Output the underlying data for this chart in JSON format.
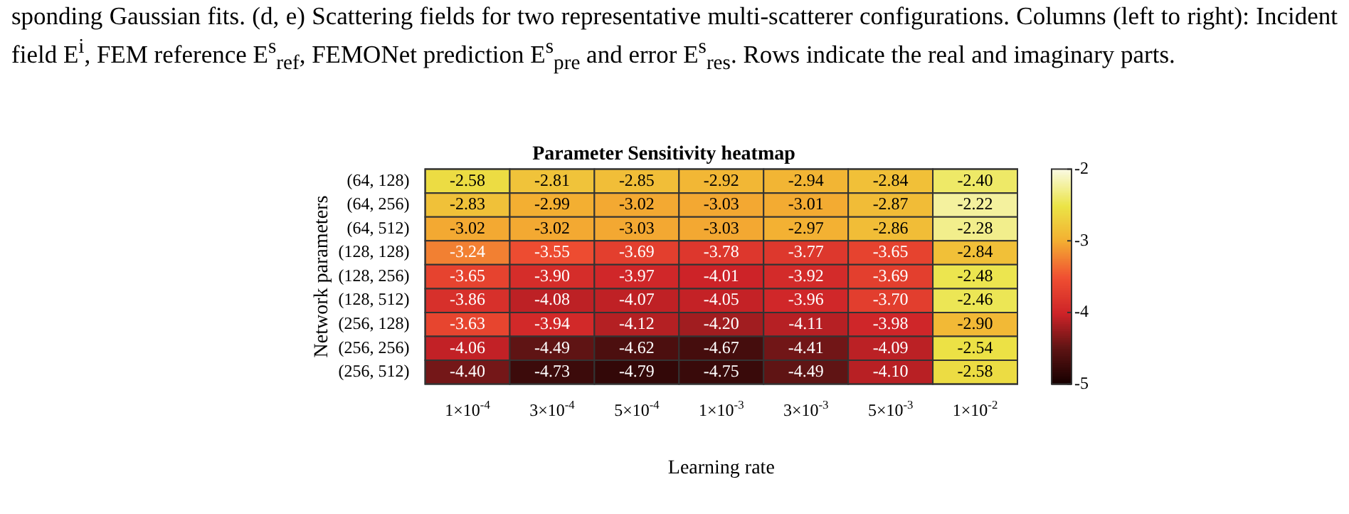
{
  "chart_data": {
    "type": "heatmap",
    "title": "Parameter Sensitivity heatmap",
    "xlabel": "Learning rate",
    "ylabel": "Network parameters",
    "annotations": [
      "sponding Gaussian fits. (d, e) Scattering fields for two representative multi-scatterer configurations. Columns (left to right): Incident field E$^{i}$, FEM reference E$^{s}$$_{ref}$, FEMONet prediction E$^{s}$$_{pre}$ and error E$^{s}$$_{res}$. Rows indicate the real and imaginary parts."
    ],
    "categories": [
      "1×10$^{-4}$",
      "3×10$^{-4}$",
      "5×10$^{-4}$",
      "1×10$^{-3}$",
      "3×10$^{-3}$",
      "5×10$^{-3}$",
      "1×10$^{-2}$"
    ],
    "y_categories": [
      "(64, 128)",
      "(64, 256)",
      "(64, 512)",
      "(128, 128)",
      "(128, 256)",
      "(128, 512)",
      "(256, 128)",
      "(256, 256)",
      "(256, 512)"
    ],
    "cells": [
      [
        -2.58,
        -2.81,
        -2.85,
        -2.92,
        -2.94,
        -2.84,
        -2.4
      ],
      [
        -2.83,
        -2.99,
        -3.02,
        -3.03,
        -3.01,
        -2.87,
        -2.22
      ],
      [
        -3.02,
        -3.02,
        -3.03,
        -3.03,
        -2.97,
        -2.86,
        -2.28
      ],
      [
        -3.24,
        -3.55,
        -3.69,
        -3.78,
        -3.77,
        -3.65,
        -2.84
      ],
      [
        -3.65,
        -3.9,
        -3.97,
        -4.01,
        -3.92,
        -3.69,
        -2.48
      ],
      [
        -3.86,
        -4.08,
        -4.07,
        -4.05,
        -3.96,
        -3.7,
        -2.46
      ],
      [
        -3.63,
        -3.94,
        -4.12,
        -4.2,
        -4.11,
        -3.98,
        -2.9
      ],
      [
        -4.06,
        -4.49,
        -4.62,
        -4.67,
        -4.41,
        -4.09,
        -2.54
      ],
      [
        -4.4,
        -4.73,
        -4.79,
        -4.75,
        -4.49,
        -4.1,
        -2.58
      ]
    ],
    "cell_labels": [
      [
        "-2.58",
        "-2.81",
        "-2.85",
        "-2.92",
        "-2.94",
        "-2.84",
        "-2.40"
      ],
      [
        "-2.83",
        "-2.99",
        "-3.02",
        "-3.03",
        "-3.01",
        "-2.87",
        "-2.22"
      ],
      [
        "-3.02",
        "-3.02",
        "-3.03",
        "-3.03",
        "-2.97",
        "-2.86",
        "-2.28"
      ],
      [
        "-3.24",
        "-3.55",
        "-3.69",
        "-3.78",
        "-3.77",
        "-3.65",
        "-2.84"
      ],
      [
        "-3.65",
        "-3.90",
        "-3.97",
        "-4.01",
        "-3.92",
        "-3.69",
        "-2.48"
      ],
      [
        "-3.86",
        "-4.08",
        "-4.07",
        "-4.05",
        "-3.96",
        "-3.70",
        "-2.46"
      ],
      [
        "-3.63",
        "-3.94",
        "-4.12",
        "-4.20",
        "-4.11",
        "-3.98",
        "-2.90"
      ],
      [
        "-4.06",
        "-4.49",
        "-4.62",
        "-4.67",
        "-4.41",
        "-4.09",
        "-2.54"
      ],
      [
        "-4.40",
        "-4.73",
        "-4.79",
        "-4.75",
        "-4.49",
        "-4.10",
        "-2.58"
      ]
    ],
    "clim": [
      -5,
      -2
    ],
    "cticks": [
      -5,
      -4,
      -3,
      -2
    ]
  }
}
